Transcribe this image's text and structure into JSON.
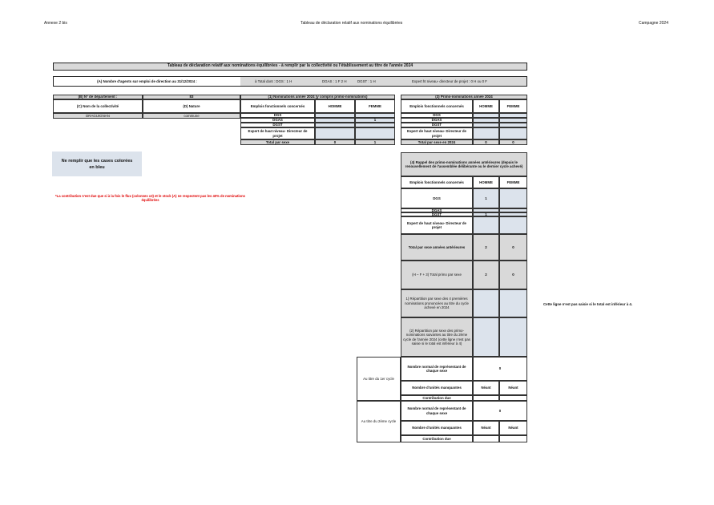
{
  "header": {
    "left": "Annexe 2 bis",
    "center": "Tableau de déclaration relatif aux nominations équilibrées",
    "right": "Campagne 2024"
  },
  "title": "Tableau de déclaration relatif aux nominations équilibrées - à remplir par la collectivité ou l'établissement au titre de l'année 2024",
  "row_a": {
    "label": "(A) Nombre d'agents sur emploi de direction au 31/12/2024 :",
    "total": "à Total  dont : DGS : 1  H",
    "dgas": "DGAS : 1 F 2 H",
    "dgst": "DGST : 1 H",
    "expert": "Expert ht niveau- directeur de projet : 0 H ou 0 F"
  },
  "collectivite": {
    "dept_label": "(B) N° de département :",
    "dept_value": "83",
    "nom_label": "(C) Nom de la collectivité",
    "nature_label": "(D) Nature",
    "nom": "DRAGUIGNAN",
    "nature": "commune"
  },
  "nominations": {
    "title": "(1) Nominations année 2024 (y compris primo-nominations)",
    "col_emploi": "Emplois fonctionnels concernés",
    "col_homme": "HOMME",
    "col_femme": "FEMME",
    "rows": [
      {
        "label": "DGS",
        "h": "",
        "f": ""
      },
      {
        "label": "DGAS",
        "h": "",
        "f": "1"
      },
      {
        "label": "DGST",
        "h": "",
        "f": ""
      },
      {
        "label": "Expert de haut niveau- Directeur de projet",
        "h": "",
        "f": ""
      }
    ],
    "total_label": "Total par sexe",
    "total_h": "0",
    "total_f": "1"
  },
  "primo": {
    "title": "(3) Primo-nominations année 2024",
    "col_emploi": "Emplois fonctionnels concernés",
    "col_homme": "HOMME",
    "col_femme": "FEMME",
    "rows": [
      {
        "label": "DGS",
        "h": "",
        "f": ""
      },
      {
        "label": "DGAS",
        "h": "",
        "f": ""
      },
      {
        "label": "DGST",
        "h": "",
        "f": ""
      },
      {
        "label": "Expert de haut niveau- Directeur de projet",
        "h": "",
        "f": ""
      }
    ],
    "total_label": "Total par sexe  en 2024",
    "total_h": "0",
    "total_f": "0"
  },
  "rappel": {
    "title": "(4) Rappel des primo-nominations années antérieures (depuis le renouvellement de l'assemblée délibérante ou le dernier cycle achevé)",
    "col_emploi": "Emplois fonctionnels concernés",
    "col_homme": "HOMME",
    "col_femme": "FEMME",
    "rows": [
      {
        "label": "DGS",
        "h": "1",
        "f": ""
      },
      {
        "label": "DGAS",
        "h": "",
        "f": ""
      },
      {
        "label": "DGST",
        "h": "1",
        "f": ""
      },
      {
        "label": "Expert de haut niveau- Directeur de projet",
        "h": "",
        "f": ""
      }
    ],
    "total_label": "Total par sexe années antérieures",
    "total_h": "2",
    "total_f": "0",
    "sum_label": "(H – F + 3) Total primo par sexe",
    "sum_h": "2",
    "sum_f": "0",
    "rep1_label": "1) Répartition par sexe des 4 premières nominations prononcées au titre du cycle  achevé en 2024",
    "rep2_label": "(2) Répartition par sexe des primo-nominations suivantes au titre du 2ème cycle de l'année 2024 (cette ligne n'est pas saisie si le total est inférieur à 4)"
  },
  "cycles": [
    {
      "label": "Au titre du 1er cycle",
      "nombre_label": "Nombre normal de représentant de chaque sexe",
      "nombre_value": "0",
      "manquantes_label": "Nombre d'unités manquantes",
      "manquantes_h": "Néant",
      "manquantes_f": "Néant",
      "contribution_label": "Contribution due"
    },
    {
      "label": "Au titre du 2ème cycle",
      "nombre_label": "Nombre normal de représentant de chaque sexe",
      "nombre_value": "0",
      "manquantes_label": "Nombre d'unités manquantes",
      "manquantes_h": "Néant",
      "manquantes_f": "Néant",
      "contribution_label": "Contribution due"
    }
  ],
  "notes": {
    "blue_box": "Ne remplir que les cases colorées en bleu",
    "red": "*La contribution n'est due que si à la fois le flux (colonnes x3) et le stock (A) ne respectent pas les 40% de nominations équilibrées",
    "right": "Cette ligne n'est pas saisie si le total est inférieur à 4."
  },
  "colors": {
    "gray": "#d9d9d9",
    "blue": "#dce3ec",
    "red": "#e00000"
  }
}
